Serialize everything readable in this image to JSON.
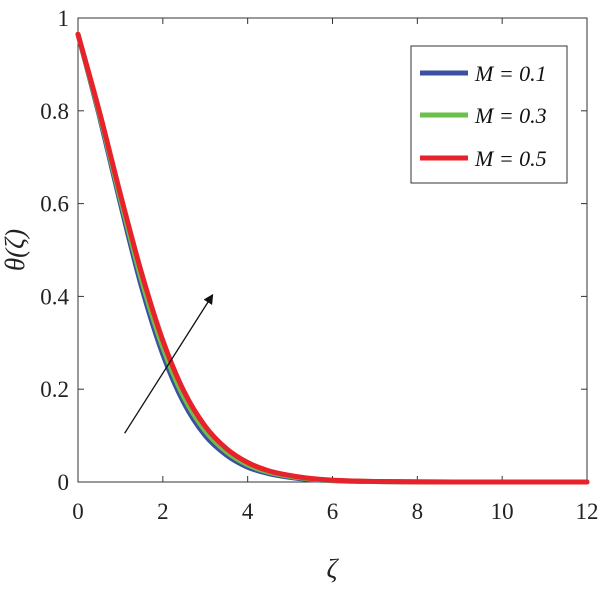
{
  "chart_data": {
    "type": "line",
    "title": "",
    "xlabel": "ζ",
    "ylabel": "θ(ζ)",
    "xlim": [
      0,
      12
    ],
    "ylim": [
      0,
      1
    ],
    "xticks": [
      "0",
      "2",
      "4",
      "6",
      "8",
      "10",
      "12"
    ],
    "yticks": [
      "0",
      "0.2",
      "0.4",
      "0.6",
      "0.8",
      "1"
    ],
    "grid": false,
    "legend_position": "top-right",
    "x": [
      0,
      0.5,
      1,
      1.5,
      2,
      2.5,
      3,
      3.5,
      4,
      4.5,
      5,
      5.5,
      6,
      6.5,
      7,
      8,
      9,
      10,
      11,
      12
    ],
    "series": [
      {
        "name": "M = 0.1",
        "color": "#3a50a0",
        "values": [
          0.965,
          0.79,
          0.6,
          0.42,
          0.275,
          0.17,
          0.1,
          0.058,
          0.032,
          0.018,
          0.01,
          0.005,
          0.003,
          0.0015,
          0.001,
          0.0003,
          0.0001,
          0,
          0,
          0
        ]
      },
      {
        "name": "M = 0.3",
        "color": "#6dbf4b",
        "values": [
          0.965,
          0.795,
          0.61,
          0.435,
          0.29,
          0.182,
          0.11,
          0.065,
          0.037,
          0.021,
          0.012,
          0.0065,
          0.0035,
          0.002,
          0.001,
          0.0004,
          0.0001,
          0,
          0,
          0
        ]
      },
      {
        "name": "M = 0.5",
        "color": "#e8222a",
        "values": [
          0.965,
          0.8,
          0.62,
          0.45,
          0.305,
          0.195,
          0.12,
          0.072,
          0.042,
          0.024,
          0.014,
          0.0075,
          0.004,
          0.0022,
          0.0012,
          0.0004,
          0.0001,
          0,
          0,
          0
        ]
      }
    ],
    "annotation": {
      "type": "arrow",
      "from": [
        1.1,
        0.105
      ],
      "to": [
        3.15,
        0.4
      ]
    }
  }
}
